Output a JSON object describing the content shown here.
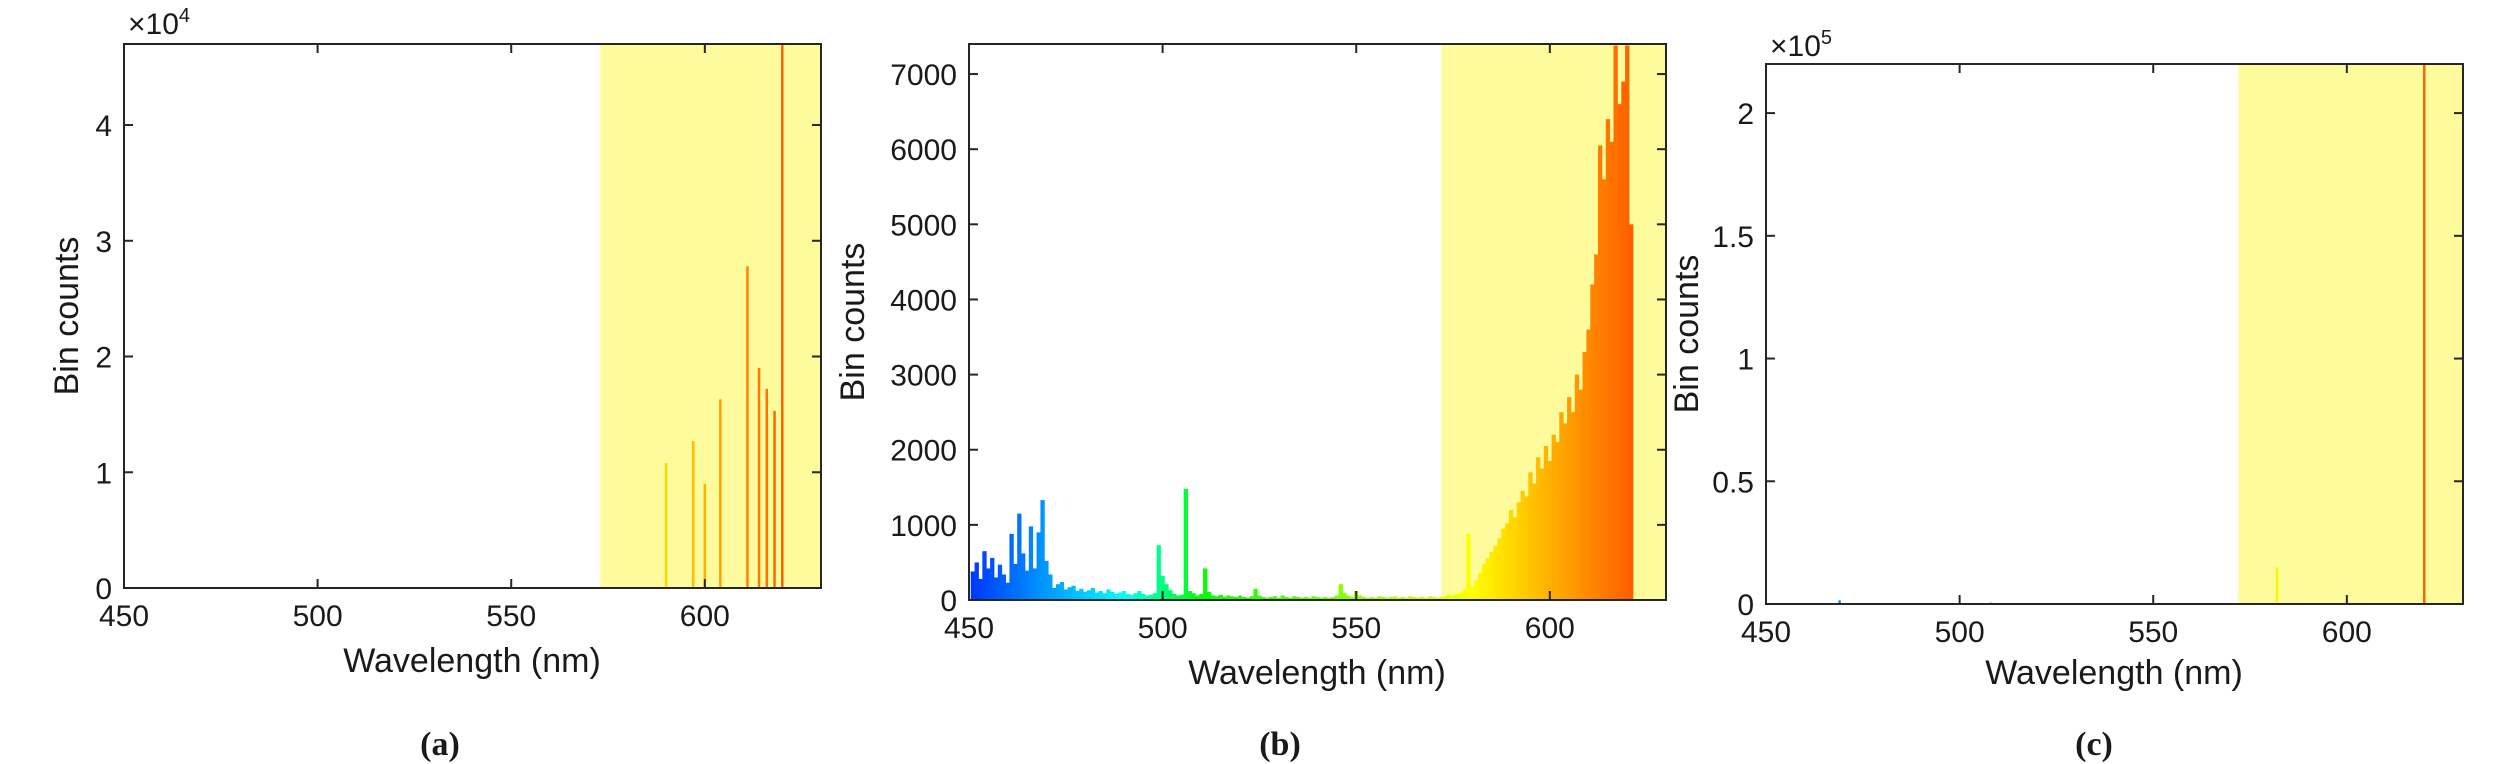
{
  "chart_data": [
    {
      "id": "a",
      "type": "bar",
      "caption": "(a)",
      "xlabel": "Wavelength (nm)",
      "ylabel": "Bin counts",
      "exponent_base": "×10",
      "exponent_power": "4",
      "xlim": [
        450,
        630
      ],
      "ylim": [
        0,
        4.7
      ],
      "xticks": [
        450,
        500,
        550,
        600
      ],
      "yticks": [
        0,
        1,
        2,
        3,
        4
      ],
      "ytick_labels": [
        "0",
        "1",
        "2",
        "3",
        "4"
      ],
      "highlight": {
        "from": 573,
        "to": 630,
        "color": "#fdfb9b"
      },
      "values": [
        [
          590,
          1.08
        ],
        [
          597,
          1.27
        ],
        [
          600,
          0.9
        ],
        [
          604,
          1.63
        ],
        [
          611,
          2.78
        ],
        [
          614,
          1.9
        ],
        [
          616,
          1.72
        ],
        [
          618,
          1.53
        ],
        [
          620,
          4.7
        ]
      ]
    },
    {
      "id": "b",
      "type": "bar",
      "caption": "(b)",
      "xlabel": "Wavelength (nm)",
      "ylabel": "Bin counts",
      "xlim": [
        450,
        630
      ],
      "ylim": [
        0,
        7400
      ],
      "xticks": [
        450,
        500,
        550,
        600
      ],
      "yticks": [
        0,
        1000,
        2000,
        3000,
        4000,
        5000,
        6000,
        7000
      ],
      "ytick_labels": [
        "0",
        "1000",
        "2000",
        "3000",
        "4000",
        "5000",
        "6000",
        "7000"
      ],
      "highlight": {
        "from": 572,
        "to": 630,
        "color": "#fdfb9b"
      },
      "values": [
        [
          451,
          380
        ],
        [
          452,
          500
        ],
        [
          453,
          280
        ],
        [
          454,
          650
        ],
        [
          455,
          420
        ],
        [
          456,
          560
        ],
        [
          457,
          300
        ],
        [
          458,
          470
        ],
        [
          459,
          340
        ],
        [
          460,
          230
        ],
        [
          461,
          880
        ],
        [
          462,
          480
        ],
        [
          463,
          1150
        ],
        [
          464,
          620
        ],
        [
          465,
          390
        ],
        [
          466,
          980
        ],
        [
          467,
          420
        ],
        [
          468,
          900
        ],
        [
          469,
          1330
        ],
        [
          470,
          520
        ],
        [
          471,
          340
        ],
        [
          472,
          160
        ],
        [
          473,
          210
        ],
        [
          474,
          240
        ],
        [
          475,
          140
        ],
        [
          476,
          170
        ],
        [
          477,
          190
        ],
        [
          478,
          120
        ],
        [
          479,
          150
        ],
        [
          480,
          110
        ],
        [
          481,
          130
        ],
        [
          482,
          160
        ],
        [
          483,
          100
        ],
        [
          484,
          120
        ],
        [
          485,
          90
        ],
        [
          486,
          140
        ],
        [
          487,
          110
        ],
        [
          488,
          80
        ],
        [
          489,
          100
        ],
        [
          490,
          120
        ],
        [
          491,
          80
        ],
        [
          492,
          70
        ],
        [
          493,
          90
        ],
        [
          494,
          120
        ],
        [
          495,
          80
        ],
        [
          496,
          60
        ],
        [
          497,
          70
        ],
        [
          498,
          90
        ],
        [
          499,
          730
        ],
        [
          500,
          320
        ],
        [
          501,
          210
        ],
        [
          502,
          130
        ],
        [
          503,
          80
        ],
        [
          504,
          60
        ],
        [
          505,
          70
        ],
        [
          506,
          1480
        ],
        [
          507,
          120
        ],
        [
          508,
          90
        ],
        [
          509,
          60
        ],
        [
          510,
          80
        ],
        [
          511,
          420
        ],
        [
          512,
          110
        ],
        [
          513,
          60
        ],
        [
          514,
          50
        ],
        [
          515,
          70
        ],
        [
          516,
          40
        ],
        [
          517,
          60
        ],
        [
          518,
          50
        ],
        [
          519,
          40
        ],
        [
          520,
          60
        ],
        [
          521,
          40
        ],
        [
          522,
          30
        ],
        [
          523,
          50
        ],
        [
          524,
          150
        ],
        [
          525,
          60
        ],
        [
          526,
          40
        ],
        [
          527,
          30
        ],
        [
          528,
          40
        ],
        [
          529,
          50
        ],
        [
          530,
          30
        ],
        [
          531,
          60
        ],
        [
          532,
          40
        ],
        [
          533,
          30
        ],
        [
          534,
          50
        ],
        [
          535,
          40
        ],
        [
          536,
          30
        ],
        [
          537,
          40
        ],
        [
          538,
          30
        ],
        [
          539,
          50
        ],
        [
          540,
          40
        ],
        [
          541,
          30
        ],
        [
          542,
          40
        ],
        [
          543,
          30
        ],
        [
          544,
          40
        ],
        [
          545,
          60
        ],
        [
          546,
          210
        ],
        [
          547,
          90
        ],
        [
          548,
          60
        ],
        [
          549,
          40
        ],
        [
          550,
          120
        ],
        [
          551,
          60
        ],
        [
          552,
          40
        ],
        [
          553,
          30
        ],
        [
          554,
          40
        ],
        [
          555,
          30
        ],
        [
          556,
          50
        ],
        [
          557,
          40
        ],
        [
          558,
          30
        ],
        [
          559,
          40
        ],
        [
          560,
          50
        ],
        [
          561,
          30
        ],
        [
          562,
          40
        ],
        [
          563,
          30
        ],
        [
          564,
          50
        ],
        [
          565,
          40
        ],
        [
          566,
          30
        ],
        [
          567,
          40
        ],
        [
          568,
          30
        ],
        [
          569,
          50
        ],
        [
          570,
          40
        ],
        [
          571,
          30
        ],
        [
          572,
          40
        ],
        [
          573,
          50
        ],
        [
          574,
          70
        ],
        [
          575,
          60
        ],
        [
          576,
          80
        ],
        [
          577,
          100
        ],
        [
          578,
          140
        ],
        [
          579,
          880
        ],
        [
          580,
          180
        ],
        [
          581,
          260
        ],
        [
          582,
          360
        ],
        [
          583,
          480
        ],
        [
          584,
          560
        ],
        [
          585,
          640
        ],
        [
          586,
          720
        ],
        [
          587,
          820
        ],
        [
          588,
          950
        ],
        [
          589,
          1020
        ],
        [
          590,
          1200
        ],
        [
          591,
          1100
        ],
        [
          592,
          1300
        ],
        [
          593,
          1450
        ],
        [
          594,
          1380
        ],
        [
          595,
          1700
        ],
        [
          596,
          1550
        ],
        [
          597,
          1900
        ],
        [
          598,
          1750
        ],
        [
          599,
          2050
        ],
        [
          600,
          1850
        ],
        [
          601,
          2200
        ],
        [
          602,
          2100
        ],
        [
          603,
          2500
        ],
        [
          604,
          2350
        ],
        [
          605,
          2700
        ],
        [
          606,
          2500
        ],
        [
          607,
          3000
        ],
        [
          608,
          2800
        ],
        [
          609,
          3300
        ],
        [
          610,
          3600
        ],
        [
          611,
          4200
        ],
        [
          612,
          4600
        ],
        [
          613,
          6050
        ],
        [
          614,
          5600
        ],
        [
          615,
          6400
        ],
        [
          616,
          6100
        ],
        [
          617,
          7380
        ],
        [
          618,
          6600
        ],
        [
          619,
          6900
        ],
        [
          620,
          7380
        ],
        [
          621,
          5000
        ]
      ]
    },
    {
      "id": "c",
      "type": "bar",
      "caption": "(c)",
      "xlabel": "Wavelength (nm)",
      "ylabel": "Bin counts",
      "exponent_base": "×10",
      "exponent_power": "5",
      "xlim": [
        450,
        630
      ],
      "ylim": [
        0,
        2.2
      ],
      "xticks": [
        450,
        500,
        550,
        600
      ],
      "yticks": [
        0,
        0.5,
        1,
        1.5,
        2
      ],
      "ytick_labels": [
        "0",
        "0.5",
        "1",
        "1.5",
        "2"
      ],
      "highlight": {
        "from": 572,
        "to": 630,
        "color": "#fdfb9b"
      },
      "values": [
        [
          469,
          0.015
        ],
        [
          508,
          0.006
        ],
        [
          582,
          0.15
        ],
        [
          620,
          2.2
        ]
      ]
    }
  ]
}
